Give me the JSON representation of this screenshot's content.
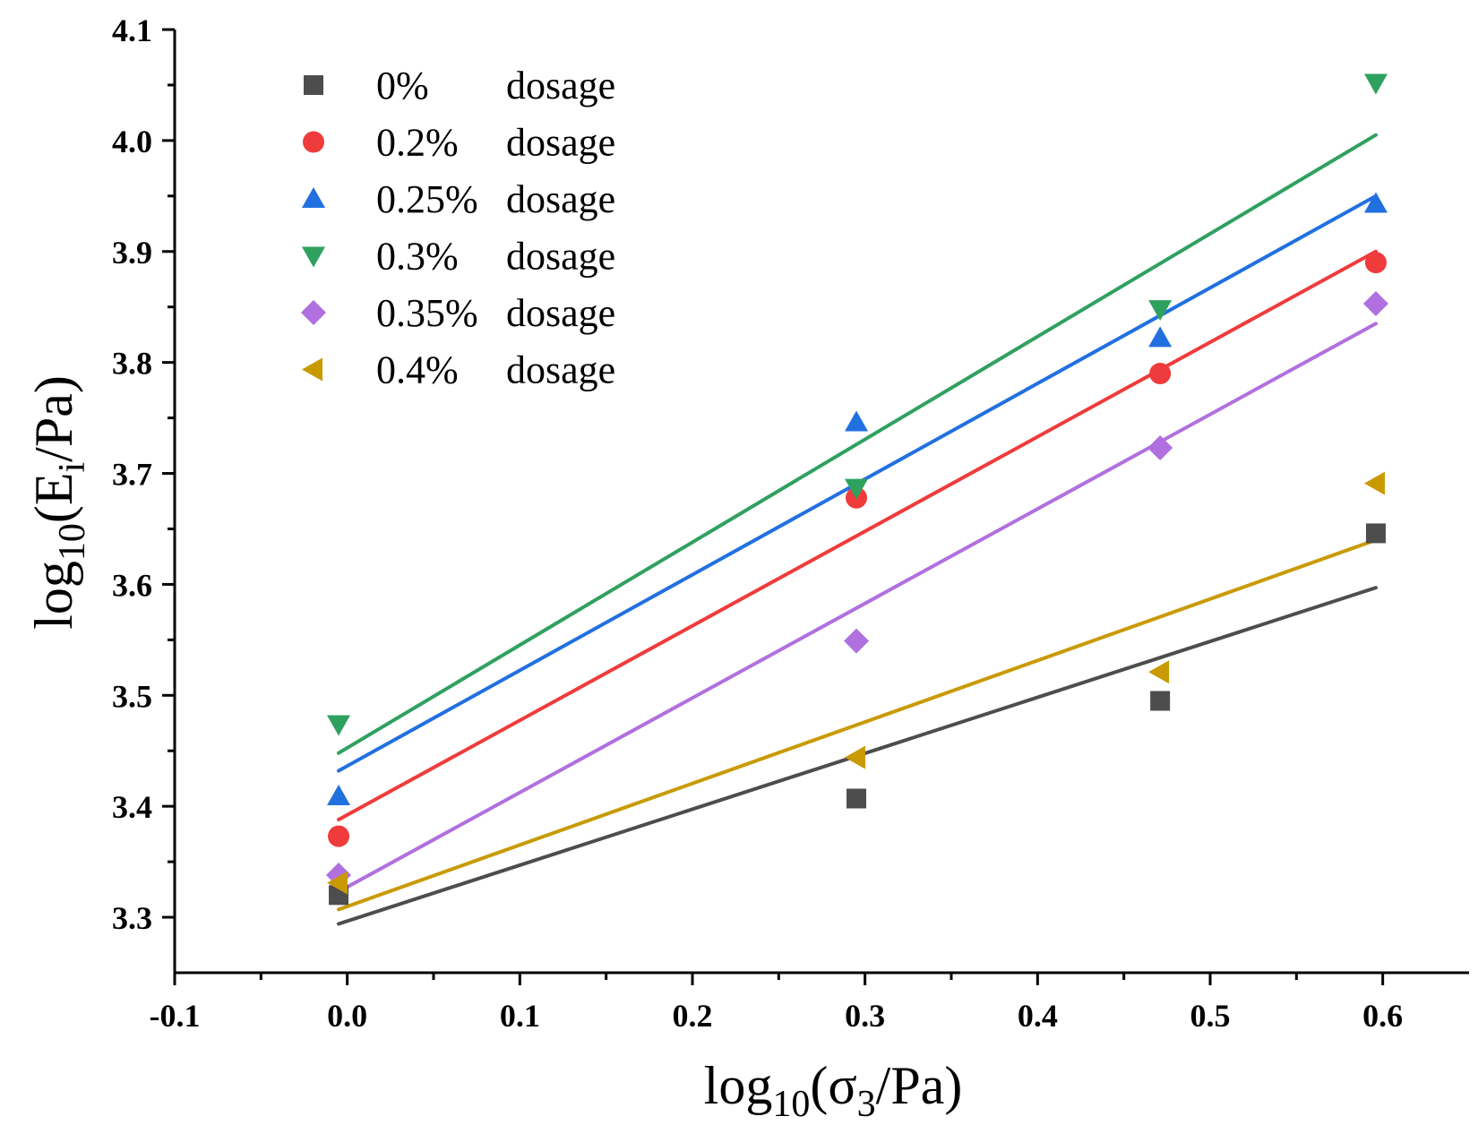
{
  "chart_data": {
    "type": "scatter",
    "xlabel": {
      "pre": "log",
      "sub": "10",
      "mid": "(σ",
      "sub2": "3",
      "post": "/Pa)"
    },
    "ylabel": {
      "pre": "log",
      "sub": "10",
      "mid": "(E",
      "sub2": "i",
      "post": "/Pa)"
    },
    "xlim": [
      -0.1,
      0.65
    ],
    "ylim": [
      3.25,
      4.1
    ],
    "xticks": [
      -0.1,
      0.0,
      0.1,
      0.2,
      0.3,
      0.4,
      0.5,
      0.6
    ],
    "xtick_labels": [
      "-0.1",
      "0.0",
      "0.1",
      "0.2",
      "0.3",
      "0.4",
      "0.5",
      "0.6"
    ],
    "yticks": [
      3.3,
      3.4,
      3.5,
      3.6,
      3.7,
      3.8,
      3.9,
      4.0,
      4.1
    ],
    "ytick_labels": [
      "3.3",
      "3.4",
      "3.5",
      "3.6",
      "3.7",
      "3.8",
      "3.9",
      "4.0",
      "4.1"
    ],
    "legend_position": "top-left",
    "series": [
      {
        "name": "0%",
        "suffix": "dosage",
        "color": "#4d4d4d",
        "marker": "square",
        "x": [
          -0.005,
          0.295,
          0.471,
          0.596
        ],
        "y": [
          3.32,
          3.407,
          3.495,
          3.646
        ],
        "fit": {
          "x": [
            -0.005,
            0.596
          ],
          "y": [
            3.294,
            3.597
          ]
        }
      },
      {
        "name": "0.2%",
        "suffix": "dosage",
        "color": "#ef3b3b",
        "marker": "circle",
        "x": [
          -0.005,
          0.295,
          0.471,
          0.596
        ],
        "y": [
          3.373,
          3.678,
          3.79,
          3.89
        ],
        "fit": {
          "x": [
            -0.005,
            0.596
          ],
          "y": [
            3.388,
            3.9
          ]
        }
      },
      {
        "name": "0.25%",
        "suffix": "dosage",
        "color": "#2170e0",
        "marker": "triangle-up",
        "x": [
          -0.005,
          0.295,
          0.471,
          0.596
        ],
        "y": [
          3.409,
          3.746,
          3.822,
          3.943
        ],
        "fit": {
          "x": [
            -0.005,
            0.596
          ],
          "y": [
            3.432,
            3.95
          ]
        }
      },
      {
        "name": "0.3%",
        "suffix": "dosage",
        "color": "#2fa15f",
        "marker": "triangle-down",
        "x": [
          -0.005,
          0.295,
          0.471,
          0.596
        ],
        "y": [
          3.474,
          3.687,
          3.848,
          4.052
        ],
        "fit": {
          "x": [
            -0.005,
            0.596
          ],
          "y": [
            3.448,
            4.005
          ]
        }
      },
      {
        "name": "0.35%",
        "suffix": "dosage",
        "color": "#b070e0",
        "marker": "diamond",
        "x": [
          -0.005,
          0.295,
          0.471,
          0.596
        ],
        "y": [
          3.338,
          3.549,
          3.723,
          3.853
        ],
        "fit": {
          "x": [
            -0.005,
            0.596
          ],
          "y": [
            3.323,
            3.835
          ]
        }
      },
      {
        "name": "0.4%",
        "suffix": "dosage",
        "color": "#c99a00",
        "marker": "triangle-left",
        "x": [
          -0.005,
          0.295,
          0.471,
          0.596
        ],
        "y": [
          3.331,
          3.444,
          3.521,
          3.691
        ],
        "fit": {
          "x": [
            -0.005,
            0.596
          ],
          "y": [
            3.307,
            3.64
          ]
        }
      }
    ]
  }
}
